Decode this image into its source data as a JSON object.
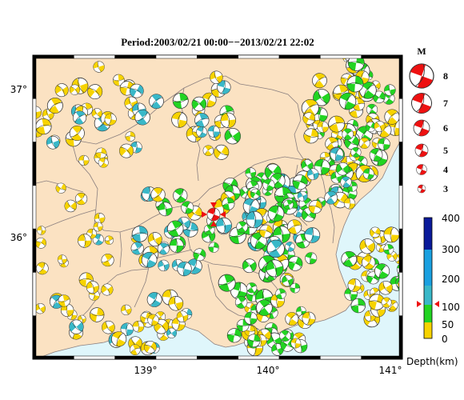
{
  "title": "Period:2003/02/21 00:00−−2013/02/21 22:02",
  "lat_labels": [
    "37°",
    "36°"
  ],
  "lon_labels": [
    "139°",
    "140°",
    "141°"
  ],
  "magnitude": {
    "heading": "M",
    "levels": [
      "8",
      "7",
      "6",
      "5",
      "4",
      "3"
    ]
  },
  "depth_scale": {
    "label": "Depth(km)",
    "ticks": [
      "400",
      "300",
      "200",
      "100",
      "50",
      "0"
    ],
    "colors": {
      "deep": "#0a1a9a",
      "mid": "#1aa0e0",
      "teal": "#39b8c8",
      "shallow_mid": "#22d422",
      "shallow": "#f7d300"
    },
    "marker_depth": "100"
  },
  "colors": {
    "land": "#fbe2c2",
    "sea": "#dff6fb",
    "border": "#8a7f7f",
    "highlight": "#ee1111"
  }
}
